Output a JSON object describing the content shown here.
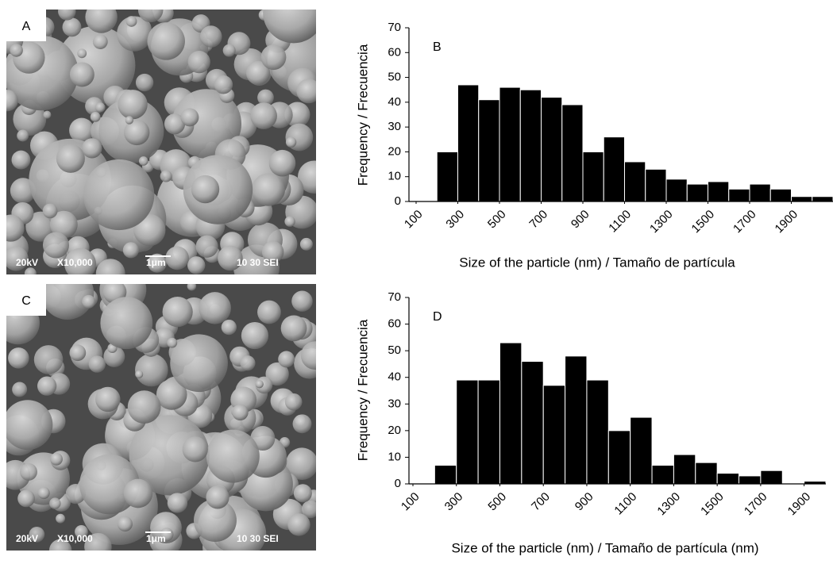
{
  "panels": [
    {
      "label": "A",
      "voltage": "20kV",
      "magnification": "X10,000",
      "scale": "1μm",
      "info": "10 30 SEI"
    },
    {
      "label": "C",
      "voltage": "20kV",
      "magnification": "X10,000",
      "scale": "1μm",
      "info": "10 30 SEI"
    }
  ],
  "chart_data": [
    {
      "type": "histogram",
      "annotation": "B",
      "x_label": "Size of the particle (nm) / Tamaño de partícula",
      "y_label": "Frequency / Frecuencia",
      "bins": [
        200,
        300,
        400,
        500,
        600,
        700,
        800,
        900,
        1000,
        1100,
        1200,
        1300,
        1400,
        1500,
        1600,
        1700,
        1800,
        1900,
        2000,
        2100
      ],
      "values": [
        20,
        47,
        41,
        46,
        45,
        42,
        39,
        20,
        26,
        16,
        13,
        9,
        7,
        8,
        5,
        7,
        5,
        2,
        2
      ],
      "color": "#000000",
      "xlim": [
        100,
        2100
      ],
      "xticks": [
        100,
        300,
        500,
        700,
        900,
        1100,
        1300,
        1500,
        1700,
        1900
      ],
      "ylim": [
        0,
        70
      ],
      "yticks": [
        0,
        10,
        20,
        30,
        40,
        50,
        60,
        70
      ]
    },
    {
      "type": "histogram",
      "annotation": "D",
      "x_label": "Size of the particle (nm) / Tamaño de partícula (nm)",
      "y_label": "Frequency / Frecuencia",
      "bins": [
        200,
        300,
        400,
        500,
        600,
        700,
        800,
        900,
        1000,
        1100,
        1200,
        1300,
        1400,
        1500,
        1600,
        1700,
        1800,
        1900,
        2000
      ],
      "values": [
        7,
        39,
        39,
        53,
        46,
        37,
        48,
        39,
        20,
        25,
        7,
        11,
        8,
        4,
        3,
        5,
        0,
        1
      ],
      "color": "#000000",
      "xlim": [
        100,
        2000
      ],
      "xticks": [
        100,
        300,
        500,
        700,
        900,
        1100,
        1300,
        1500,
        1700,
        1900
      ],
      "ylim": [
        0,
        70
      ],
      "yticks": [
        0,
        10,
        20,
        30,
        40,
        50,
        60,
        70
      ]
    }
  ]
}
